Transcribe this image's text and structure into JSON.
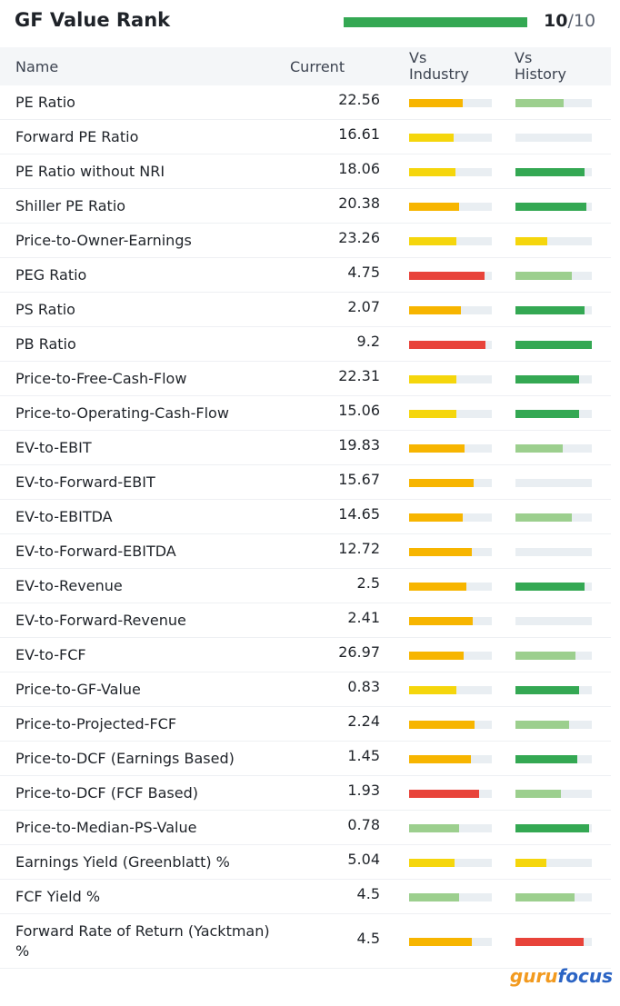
{
  "header": {
    "title": "GF Value Rank",
    "score": 10,
    "separator": "/",
    "max": 10,
    "bar_color": "#34a853"
  },
  "columns": [
    "Name",
    "Current",
    "Vs Industry",
    "Vs History"
  ],
  "rows": [
    {
      "name": "PE Ratio",
      "current": 22.56,
      "chart_icon": true,
      "industry": {
        "fill": 0.65,
        "color": "#f7b500"
      },
      "history": {
        "fill": 0.63,
        "color": "#9ccf8e"
      }
    },
    {
      "name": "Forward PE Ratio",
      "current": 16.61,
      "chart_icon": true,
      "industry": {
        "fill": 0.54,
        "color": "#f5d60c"
      },
      "history": null
    },
    {
      "name": "PE Ratio without NRI",
      "current": 18.06,
      "chart_icon": true,
      "industry": {
        "fill": 0.56,
        "color": "#f5d60c"
      },
      "history": {
        "fill": 0.9,
        "color": "#34a853"
      }
    },
    {
      "name": "Shiller PE Ratio",
      "current": 20.38,
      "chart_icon": true,
      "industry": {
        "fill": 0.6,
        "color": "#f7b500"
      },
      "history": {
        "fill": 0.93,
        "color": "#34a853"
      }
    },
    {
      "name": "Price-to-Owner-Earnings",
      "current": 23.26,
      "chart_icon": true,
      "industry": {
        "fill": 0.57,
        "color": "#f5d60c"
      },
      "history": {
        "fill": 0.42,
        "color": "#f5d60c"
      }
    },
    {
      "name": "PEG Ratio",
      "current": 4.75,
      "chart_icon": true,
      "industry": {
        "fill": 0.91,
        "color": "#e8433a"
      },
      "history": {
        "fill": 0.74,
        "color": "#9ccf8e"
      }
    },
    {
      "name": "PS Ratio",
      "current": 2.07,
      "chart_icon": true,
      "industry": {
        "fill": 0.63,
        "color": "#f7b500"
      },
      "history": {
        "fill": 0.9,
        "color": "#34a853"
      }
    },
    {
      "name": "PB Ratio",
      "current": 9.2,
      "chart_icon": true,
      "industry": {
        "fill": 0.92,
        "color": "#e8433a"
      },
      "history": {
        "fill": 1.0,
        "color": "#34a853"
      }
    },
    {
      "name": "Price-to-Free-Cash-Flow",
      "current": 22.31,
      "chart_icon": true,
      "industry": {
        "fill": 0.57,
        "color": "#f5d60c"
      },
      "history": {
        "fill": 0.83,
        "color": "#34a853"
      }
    },
    {
      "name": "Price-to-Operating-Cash-Flow",
      "current": 15.06,
      "chart_icon": true,
      "industry": {
        "fill": 0.57,
        "color": "#f5d60c"
      },
      "history": {
        "fill": 0.83,
        "color": "#34a853"
      }
    },
    {
      "name": "EV-to-EBIT",
      "current": 19.83,
      "chart_icon": true,
      "industry": {
        "fill": 0.67,
        "color": "#f7b500"
      },
      "history": {
        "fill": 0.62,
        "color": "#9ccf8e"
      }
    },
    {
      "name": "EV-to-Forward-EBIT",
      "current": 15.67,
      "chart_icon": false,
      "industry": {
        "fill": 0.78,
        "color": "#f7b500"
      },
      "history": null
    },
    {
      "name": "EV-to-EBITDA",
      "current": 14.65,
      "chart_icon": true,
      "industry": {
        "fill": 0.65,
        "color": "#f7b500"
      },
      "history": {
        "fill": 0.74,
        "color": "#9ccf8e"
      }
    },
    {
      "name": "EV-to-Forward-EBITDA",
      "current": 12.72,
      "chart_icon": false,
      "industry": {
        "fill": 0.76,
        "color": "#f7b500"
      },
      "history": null
    },
    {
      "name": "EV-to-Revenue",
      "current": 2.5,
      "chart_icon": true,
      "industry": {
        "fill": 0.69,
        "color": "#f7b500"
      },
      "history": {
        "fill": 0.9,
        "color": "#34a853"
      }
    },
    {
      "name": "EV-to-Forward-Revenue",
      "current": 2.41,
      "chart_icon": false,
      "industry": {
        "fill": 0.77,
        "color": "#f7b500"
      },
      "history": null
    },
    {
      "name": "EV-to-FCF",
      "current": 26.97,
      "chart_icon": false,
      "industry": {
        "fill": 0.66,
        "color": "#f7b500"
      },
      "history": {
        "fill": 0.79,
        "color": "#9ccf8e"
      }
    },
    {
      "name": "Price-to-GF-Value",
      "current": 0.83,
      "chart_icon": true,
      "industry": {
        "fill": 0.57,
        "color": "#f5d60c"
      },
      "history": {
        "fill": 0.83,
        "color": "#34a853"
      }
    },
    {
      "name": "Price-to-Projected-FCF",
      "current": 2.24,
      "chart_icon": true,
      "industry": {
        "fill": 0.79,
        "color": "#f7b500"
      },
      "history": {
        "fill": 0.7,
        "color": "#9ccf8e"
      }
    },
    {
      "name": "Price-to-DCF (Earnings Based)",
      "current": 1.45,
      "chart_icon": true,
      "industry": {
        "fill": 0.75,
        "color": "#f7b500"
      },
      "history": {
        "fill": 0.81,
        "color": "#34a853"
      }
    },
    {
      "name": "Price-to-DCF (FCF Based)",
      "current": 1.93,
      "chart_icon": true,
      "industry": {
        "fill": 0.85,
        "color": "#e8433a"
      },
      "history": {
        "fill": 0.6,
        "color": "#9ccf8e"
      }
    },
    {
      "name": "Price-to-Median-PS-Value",
      "current": 0.78,
      "chart_icon": true,
      "industry": {
        "fill": 0.6,
        "color": "#9ccf8e"
      },
      "history": {
        "fill": 0.96,
        "color": "#34a853"
      }
    },
    {
      "name": "Earnings Yield (Greenblatt) %",
      "current": 5.04,
      "chart_icon": true,
      "industry": {
        "fill": 0.55,
        "color": "#f5d60c"
      },
      "history": {
        "fill": 0.4,
        "color": "#f5d60c"
      }
    },
    {
      "name": "FCF Yield %",
      "current": 4.5,
      "chart_icon": true,
      "industry": {
        "fill": 0.6,
        "color": "#9ccf8e"
      },
      "history": {
        "fill": 0.77,
        "color": "#9ccf8e"
      }
    },
    {
      "name": "Forward Rate of Return (Yacktman) %",
      "current": 4.5,
      "chart_icon": true,
      "industry": {
        "fill": 0.76,
        "color": "#f7b500"
      },
      "history": {
        "fill": 0.89,
        "color": "#e8433a"
      }
    }
  ],
  "footer": {
    "logo_a": "guru",
    "logo_b": "focus"
  }
}
